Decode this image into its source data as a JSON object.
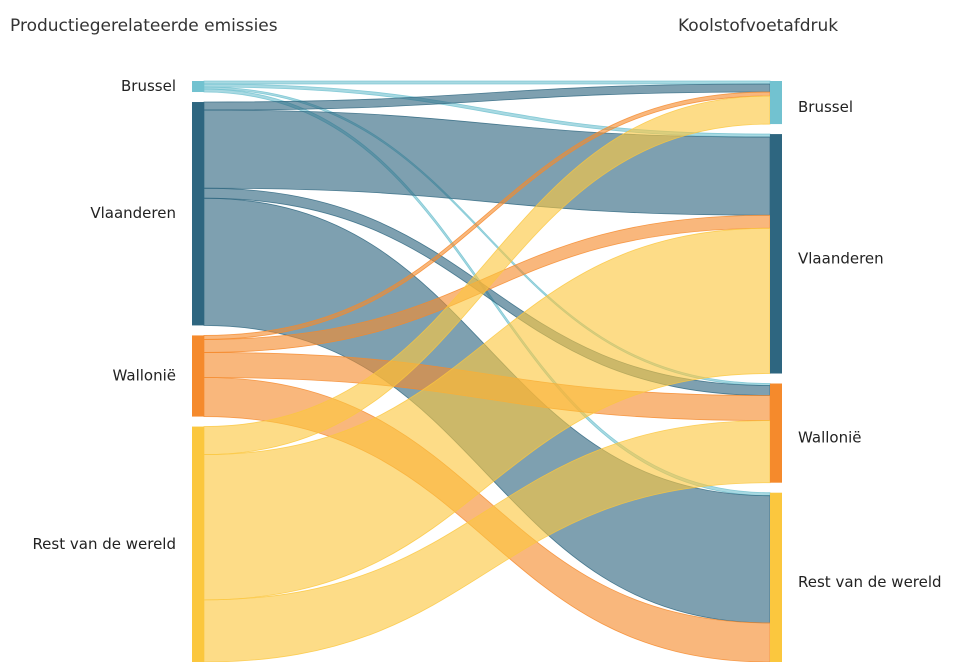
{
  "chart_data": {
    "type": "sankey",
    "columns": [
      {
        "title": "Productiegerelateerde emissies",
        "nodes": [
          {
            "name": "Brussel",
            "color": "#72c2d0"
          },
          {
            "name": "Vlaanderen",
            "color": "#2e6680"
          },
          {
            "name": "Wallonië",
            "color": "#f58a2c"
          },
          {
            "name": "Rest van de wereld",
            "color": "#fbc73e"
          }
        ]
      },
      {
        "title": "Koolstofvoetafdruk",
        "nodes": [
          {
            "name": "Brussel",
            "color": "#72c2d0"
          },
          {
            "name": "Vlaanderen",
            "color": "#2e6680"
          },
          {
            "name": "Wallonië",
            "color": "#f58a2c"
          },
          {
            "name": "Rest van de wereld",
            "color": "#fbc73e"
          }
        ]
      }
    ],
    "links": [
      {
        "source": 0,
        "target": 0,
        "value": 3
      },
      {
        "source": 0,
        "target": 1,
        "value": 3
      },
      {
        "source": 0,
        "target": 2,
        "value": 2
      },
      {
        "source": 0,
        "target": 3,
        "value": 3
      },
      {
        "source": 1,
        "target": 0,
        "value": 8
      },
      {
        "source": 1,
        "target": 1,
        "value": 78
      },
      {
        "source": 1,
        "target": 2,
        "value": 10
      },
      {
        "source": 1,
        "target": 3,
        "value": 127
      },
      {
        "source": 2,
        "target": 0,
        "value": 4
      },
      {
        "source": 2,
        "target": 1,
        "value": 13
      },
      {
        "source": 2,
        "target": 2,
        "value": 25
      },
      {
        "source": 2,
        "target": 3,
        "value": 39
      },
      {
        "source": 3,
        "target": 0,
        "value": 28
      },
      {
        "source": 3,
        "target": 1,
        "value": 145
      },
      {
        "source": 3,
        "target": 2,
        "value": 62
      }
    ]
  }
}
